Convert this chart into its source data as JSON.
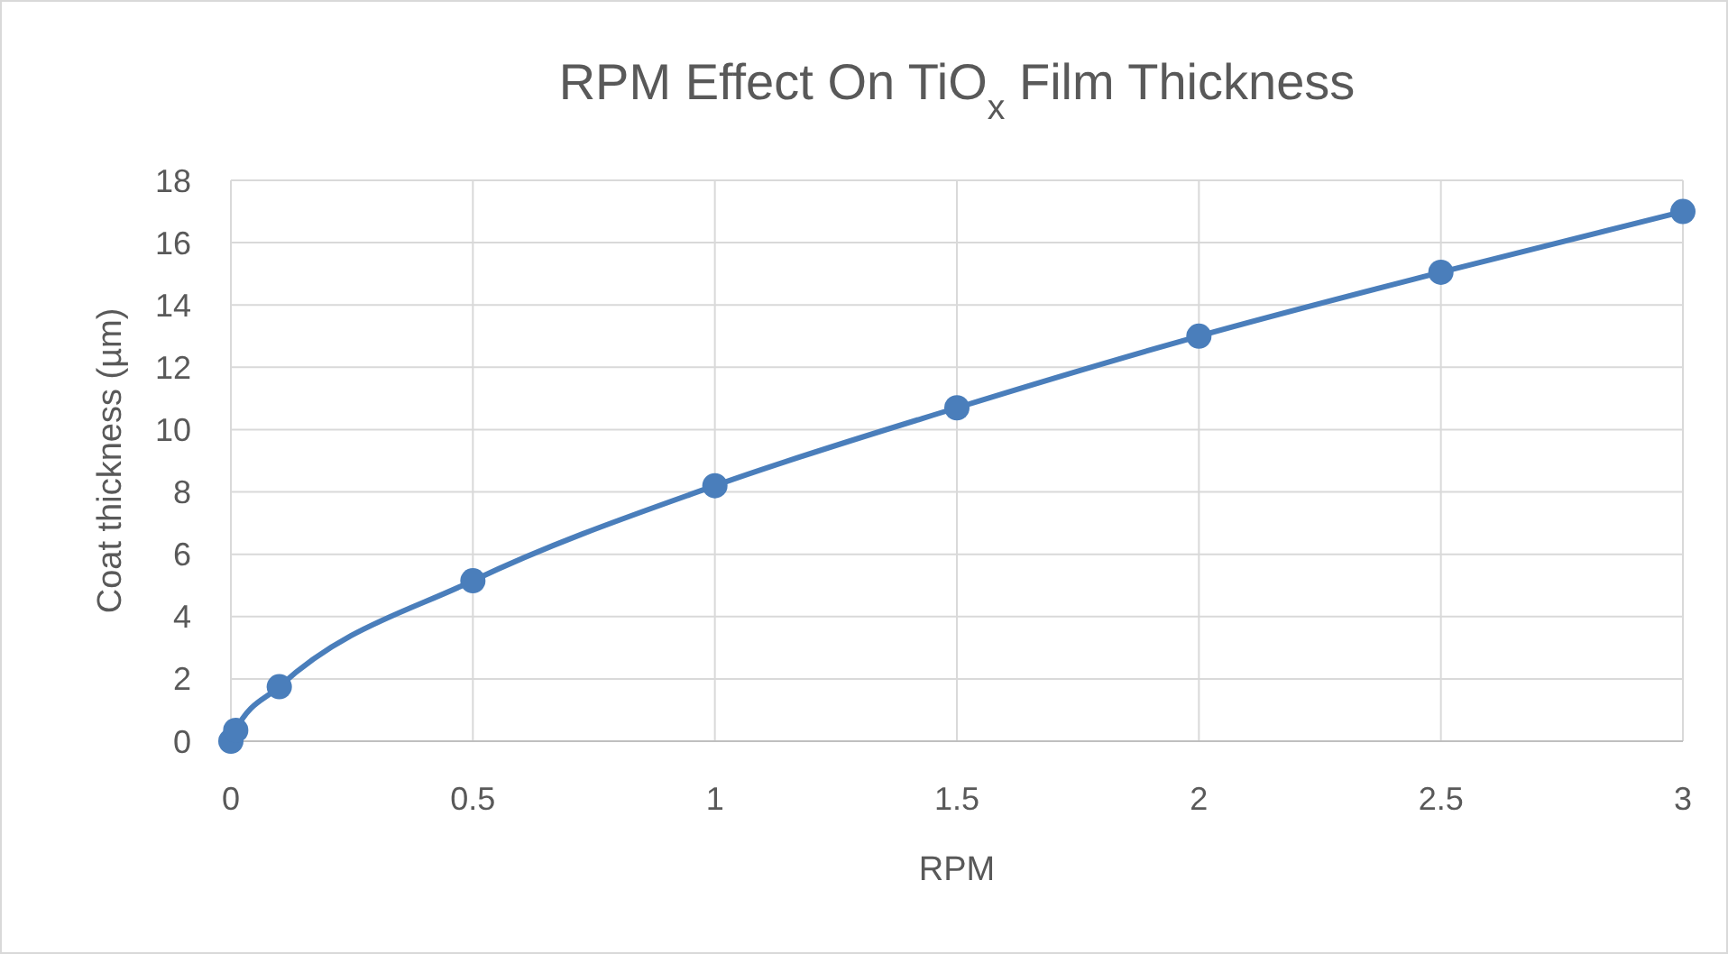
{
  "chart_data": {
    "type": "line",
    "title": "RPM Effect On TiO$_{x}$ Film Thickness",
    "xlabel": "RPM",
    "ylabel": "Coat thickness (µm)",
    "x": [
      0,
      0.01,
      0.1,
      0.5,
      1,
      1.5,
      2,
      2.5,
      3
    ],
    "series": [
      {
        "color": "#4a7ebb",
        "values": [
          0,
          0.35,
          1.75,
          5.15,
          8.2,
          10.7,
          13,
          15.05,
          17
        ]
      }
    ],
    "xlim": [
      0,
      3
    ],
    "xticks": [
      0,
      0.5,
      1,
      1.5,
      2,
      2.5,
      3
    ],
    "ylim": [
      0,
      18
    ],
    "yticks": [
      0,
      2,
      4,
      6,
      8,
      10,
      12,
      14,
      16,
      18
    ],
    "grid": true,
    "marker": "circle",
    "line_style": "solid"
  }
}
